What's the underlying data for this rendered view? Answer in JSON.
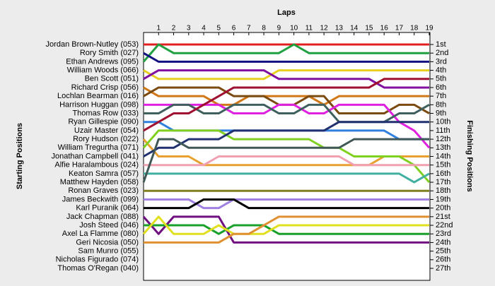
{
  "chart_data": {
    "type": "line",
    "x_label": "Laps",
    "y_label": "Starting Positions",
    "y2_label": "Finishing Positions",
    "x": [
      0,
      1,
      2,
      3,
      4,
      5,
      6,
      7,
      8,
      9,
      10,
      11,
      12,
      13,
      14,
      15,
      16,
      17,
      18,
      19
    ],
    "xlim": [
      0,
      19
    ],
    "xticks": [
      1,
      2,
      3,
      4,
      5,
      6,
      7,
      8,
      9,
      10,
      11,
      12,
      13,
      14,
      15,
      16,
      17,
      18,
      19
    ],
    "ylim": [
      1,
      27
    ],
    "y2lim": [
      1,
      27
    ],
    "y2ticks": [
      {
        "value": 1,
        "label": "1st"
      },
      {
        "value": 2,
        "label": "2nd"
      },
      {
        "value": 3,
        "label": "3rd"
      },
      {
        "value": 4,
        "label": "4th"
      },
      {
        "value": 5,
        "label": "5th"
      },
      {
        "value": 6,
        "label": "6th"
      },
      {
        "value": 7,
        "label": "7th"
      },
      {
        "value": 8,
        "label": "8th"
      },
      {
        "value": 9,
        "label": "9th"
      },
      {
        "value": 10,
        "label": "10th"
      },
      {
        "value": 11,
        "label": "11th"
      },
      {
        "value": 12,
        "label": "12th"
      },
      {
        "value": 13,
        "label": "13th"
      },
      {
        "value": 14,
        "label": "14th"
      },
      {
        "value": 15,
        "label": "15th"
      },
      {
        "value": 16,
        "label": "16th"
      },
      {
        "value": 17,
        "label": "17th"
      },
      {
        "value": 18,
        "label": "18th"
      },
      {
        "value": 19,
        "label": "19th"
      },
      {
        "value": 20,
        "label": "20th"
      },
      {
        "value": 21,
        "label": "21st"
      },
      {
        "value": 22,
        "label": "22nd"
      },
      {
        "value": 23,
        "label": "23rd"
      },
      {
        "value": 24,
        "label": "24th"
      },
      {
        "value": 25,
        "label": "25th"
      },
      {
        "value": 26,
        "label": "26th"
      },
      {
        "value": 27,
        "label": "27th"
      }
    ],
    "series": [
      {
        "name": "Jordan Brown-Nutley (053)",
        "color": "#e02020",
        "values": [
          1,
          1,
          1,
          1,
          1,
          1,
          1,
          1,
          1,
          1,
          1,
          1,
          1,
          1,
          1,
          1,
          1,
          1,
          1,
          1
        ]
      },
      {
        "name": "Rory Smith (027)",
        "color": "#20a040",
        "values": [
          3,
          1,
          2,
          2,
          2,
          2,
          2,
          2,
          2,
          2,
          1,
          2,
          2,
          2,
          2,
          2,
          2,
          2,
          2,
          2
        ]
      },
      {
        "name": "Ethan Andrews (095)",
        "color": "#101080",
        "values": [
          2,
          3,
          3,
          3,
          3,
          3,
          3,
          3,
          3,
          3,
          3,
          3,
          3,
          3,
          3,
          3,
          3,
          3,
          3,
          3
        ]
      },
      {
        "name": "William Woods (066)",
        "color": "#e8d020",
        "values": [
          4,
          5,
          5,
          5,
          5,
          5,
          5,
          5,
          5,
          4,
          4,
          4,
          4,
          4,
          4,
          4,
          4,
          4,
          4,
          4
        ]
      },
      {
        "name": "Ben Scott (051)",
        "color": "#8010a0",
        "values": [
          5,
          4,
          4,
          4,
          4,
          4,
          4,
          4,
          4,
          5,
          5,
          5,
          5,
          5,
          5,
          5,
          6,
          6,
          6,
          6
        ]
      },
      {
        "name": "Richard Crisp (056)",
        "color": "#d07818",
        "values": [
          6,
          7,
          7,
          7,
          7,
          8,
          8,
          7,
          7,
          7,
          7,
          7,
          8,
          7,
          7,
          7,
          7,
          7,
          7,
          7
        ]
      },
      {
        "name": "Lochlan Bearman (016)",
        "color": "#7a4a10",
        "values": [
          7,
          6,
          6,
          6,
          6,
          6,
          7,
          7,
          7,
          8,
          8,
          7,
          7,
          9,
          9,
          9,
          9,
          8,
          8,
          9
        ]
      },
      {
        "name": "Harrison Huggan (098)",
        "color": "#e020e0",
        "values": [
          8,
          8,
          8,
          8,
          8,
          8,
          9,
          9,
          9,
          8,
          8,
          9,
          9,
          8,
          8,
          8,
          8,
          10,
          11,
          13
        ]
      },
      {
        "name": "Thomas Row (033)",
        "color": "#406060",
        "values": [
          9,
          9,
          8,
          8,
          9,
          9,
          8,
          8,
          8,
          9,
          9,
          8,
          8,
          10,
          10,
          10,
          10,
          9,
          9,
          8
        ]
      },
      {
        "name": "Ryan Gillespie (090)",
        "color": "#3080e0",
        "values": [
          10,
          10,
          11,
          11,
          11,
          11,
          11,
          11,
          11,
          11,
          11,
          11,
          11,
          11,
          11,
          11,
          11,
          12,
          12,
          12
        ]
      },
      {
        "name": "Uzair Master (054)",
        "color": "#a01030",
        "values": [
          11,
          10,
          9,
          9,
          8,
          7,
          6,
          6,
          6,
          6,
          6,
          6,
          6,
          6,
          6,
          6,
          5,
          5,
          5,
          5
        ]
      },
      {
        "name": "Rory Hudson (022)",
        "color": "#e8a030",
        "values": [
          12,
          14,
          14,
          14,
          15,
          15,
          15,
          15,
          15,
          15,
          15,
          15,
          15,
          15,
          15,
          15,
          14,
          14,
          14,
          14
        ]
      },
      {
        "name": "William Tregurtha (071)",
        "color": "#80d020",
        "values": [
          13,
          11,
          11,
          11,
          11,
          11,
          12,
          12,
          12,
          12,
          12,
          12,
          13,
          13,
          14,
          14,
          14,
          14,
          15,
          17
        ]
      },
      {
        "name": "Jonathan Campbell (041)",
        "color": "#203070",
        "values": [
          14,
          13,
          13,
          12,
          12,
          12,
          11,
          11,
          11,
          11,
          11,
          11,
          11,
          10,
          10,
          10,
          10,
          10,
          10,
          10
        ]
      },
      {
        "name": "Alfie Haralambous (024)",
        "color": "#f0a0b0",
        "values": [
          15,
          15,
          15,
          15,
          15,
          14,
          14,
          14,
          14,
          14,
          14,
          14,
          14,
          14,
          15,
          15,
          15,
          15,
          15,
          15
        ]
      },
      {
        "name": "Keaton Samra (057)",
        "color": "#40b0a0",
        "values": [
          16,
          16,
          16,
          16,
          16,
          16,
          16,
          16,
          16,
          16,
          16,
          16,
          16,
          16,
          16,
          16,
          16,
          16,
          17,
          16
        ]
      },
      {
        "name": "Matthew Hayden (058)",
        "color": "#405858",
        "values": [
          17,
          12,
          12,
          13,
          13,
          13,
          13,
          13,
          13,
          13,
          13,
          13,
          13,
          13,
          12,
          12,
          12,
          12,
          12,
          12
        ]
      },
      {
        "name": "Ronan Graves (023)",
        "color": "#808020",
        "values": [
          18,
          18,
          18,
          18,
          18,
          18,
          18,
          18,
          18,
          18,
          18,
          18,
          18,
          18,
          18,
          18,
          18,
          18,
          18,
          18
        ]
      },
      {
        "name": "James Beckwith (099)",
        "color": "#a080e0",
        "values": [
          19,
          19,
          19,
          19,
          20,
          20,
          19,
          19,
          19,
          19,
          19,
          19,
          19,
          19,
          19,
          19,
          19,
          19,
          19,
          19
        ]
      },
      {
        "name": "Karl Puranik (064)",
        "color": "#000000",
        "values": [
          20,
          20,
          20,
          20,
          19,
          19,
          19,
          20,
          20,
          20,
          20,
          20,
          20,
          20,
          20,
          20,
          20,
          20,
          20,
          20
        ]
      },
      {
        "name": "Jack Chapman (088)",
        "color": "#701080",
        "values": [
          21,
          23,
          21,
          21,
          21,
          21,
          24,
          24,
          24,
          24,
          24,
          24,
          24,
          24,
          24,
          24,
          24,
          24,
          24,
          24
        ]
      },
      {
        "name": "Josh Steed (046)",
        "color": "#18a028",
        "values": [
          22,
          22,
          22,
          22,
          22,
          23,
          22,
          22,
          22,
          23,
          23,
          23,
          23,
          23,
          23,
          23,
          23,
          23,
          23,
          23
        ]
      },
      {
        "name": "Axel La Flamme (080)",
        "color": "#e0e020",
        "values": [
          23,
          21,
          23,
          23,
          23,
          22,
          23,
          23,
          23,
          22,
          22,
          22,
          22,
          22,
          22,
          22,
          22,
          22,
          22,
          22
        ]
      },
      {
        "name": "Geri Nicosia (050)",
        "color": "#e09030",
        "values": [
          24,
          24,
          24,
          24,
          24,
          24,
          23,
          23,
          22,
          21,
          21,
          21,
          21,
          21,
          21,
          21,
          21,
          21,
          21,
          21
        ]
      },
      {
        "name": "Sam Munro (055)",
        "color": "#808080",
        "values": [
          null,
          null,
          null,
          null,
          null,
          null,
          null,
          null,
          null,
          null,
          null,
          null,
          null,
          null,
          null,
          null,
          null,
          null,
          null,
          null
        ]
      },
      {
        "name": "Nicholas Figurado (074)",
        "color": "#808080",
        "values": [
          null,
          null,
          null,
          null,
          null,
          null,
          null,
          null,
          null,
          null,
          null,
          null,
          null,
          null,
          null,
          null,
          null,
          null,
          null,
          null
        ]
      },
      {
        "name": "Thomas O'Regan (040)",
        "color": "#808080",
        "values": [
          null,
          null,
          null,
          null,
          null,
          null,
          null,
          null,
          null,
          null,
          null,
          null,
          null,
          null,
          null,
          null,
          null,
          null,
          null,
          null
        ]
      }
    ]
  }
}
